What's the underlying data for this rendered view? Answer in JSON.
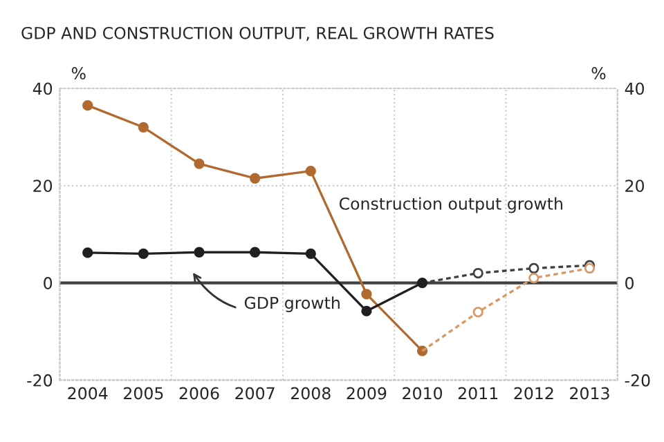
{
  "chart_data": {
    "type": "line",
    "title": "GDP AND CONSTRUCTION OUTPUT, REAL GROWTH RATES",
    "ylabel": "%",
    "y2label": "%",
    "categories": [
      "2004",
      "2005",
      "2006",
      "2007",
      "2008",
      "2009",
      "2010",
      "2011",
      "2012",
      "2013"
    ],
    "series": [
      {
        "color": "#b06a30",
        "line_style": "solid",
        "marker": "circle",
        "values": [
          36.5,
          32,
          24.5,
          21.5,
          23,
          -2.3,
          -14,
          null,
          null,
          null
        ]
      },
      {
        "color": "#d89868",
        "line_style": "dashed",
        "marker": "open circle",
        "values": [
          null,
          null,
          null,
          null,
          null,
          null,
          -14,
          -6,
          1,
          3
        ]
      },
      {
        "color": "#202020",
        "line_style": "solid",
        "marker": "circle",
        "values": [
          6.2,
          6,
          6.3,
          6.3,
          6,
          -5.8,
          0,
          null,
          null,
          null
        ]
      },
      {
        "color": "#404040",
        "line_style": "dashed",
        "marker": "open circle",
        "values": [
          null,
          null,
          null,
          null,
          null,
          null,
          0,
          2,
          3,
          3.6
        ]
      }
    ],
    "ylim": [
      -20,
      40
    ],
    "yticks": [
      -20,
      0,
      20,
      40
    ],
    "y2lim": [
      -20,
      40
    ],
    "y2ticks": [
      -20,
      0,
      20,
      40
    ],
    "ref_lines": [
      {
        "axis": "y",
        "value": 0,
        "color": "#404040"
      }
    ],
    "grid": true,
    "legend": false,
    "annotations": [
      "Construction output growth",
      "GDP growth"
    ]
  }
}
